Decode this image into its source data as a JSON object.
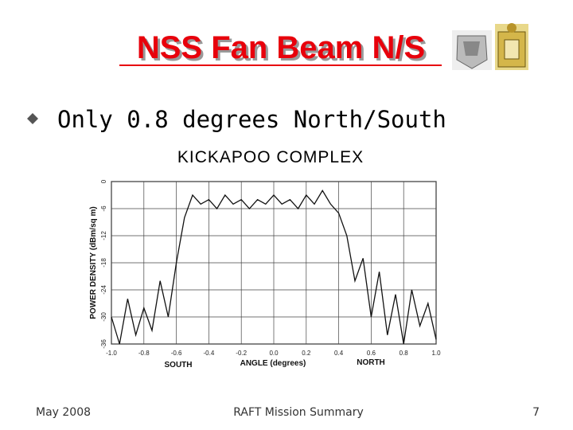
{
  "header": {
    "title": "NSS Fan Beam N/S"
  },
  "body": {
    "bullet": "Only 0.8 degrees North/South"
  },
  "footer": {
    "date": "May 2008",
    "title": "RAFT Mission Summary",
    "page": "7"
  },
  "chart_data": {
    "type": "line",
    "title": "KICKAPOO COMPLEX",
    "y_label": "POWER DENSITY (dBm/sq m)",
    "x_label": "ANGLE (degrees)",
    "annotations": [
      "SOUTH",
      "NORTH"
    ],
    "x": [
      -1.0,
      -0.95,
      -0.9,
      -0.85,
      -0.8,
      -0.75,
      -0.7,
      -0.65,
      -0.6,
      -0.55,
      -0.5,
      -0.45,
      -0.4,
      -0.35,
      -0.3,
      -0.25,
      -0.2,
      -0.15,
      -0.1,
      -0.05,
      0.0,
      0.05,
      0.1,
      0.15,
      0.2,
      0.25,
      0.3,
      0.35,
      0.4,
      0.45,
      0.5,
      0.55,
      0.6,
      0.65,
      0.7,
      0.75,
      0.8,
      0.85,
      0.9,
      0.95,
      1.0
    ],
    "values": [
      -30,
      -36,
      -26,
      -34,
      -28,
      -33,
      -22,
      -30,
      -18,
      -8,
      -3,
      -5,
      -4,
      -6,
      -3,
      -5,
      -4,
      -6,
      -4,
      -5,
      -3,
      -5,
      -4,
      -6,
      -3,
      -5,
      -2,
      -5,
      -7,
      -12,
      -22,
      -17,
      -30,
      -20,
      -34,
      -25,
      -36,
      -24,
      -32,
      -27,
      -35
    ],
    "color": "#111",
    "xlim": [
      -1.0,
      1.0
    ],
    "xticks": [
      {
        "value": -1.0,
        "label": "-1.0"
      },
      -0.8,
      -0.6,
      -0.4,
      -0.2,
      {
        "value": 0.0,
        "label": "0.0"
      },
      0.2,
      0.4,
      0.6,
      0.8,
      {
        "value": 1.0,
        "label": "1.0"
      }
    ],
    "ylim": [
      -36,
      0
    ],
    "yticks": [
      -36,
      -30,
      -24,
      -18,
      -12,
      -6,
      0
    ],
    "grid": true
  }
}
